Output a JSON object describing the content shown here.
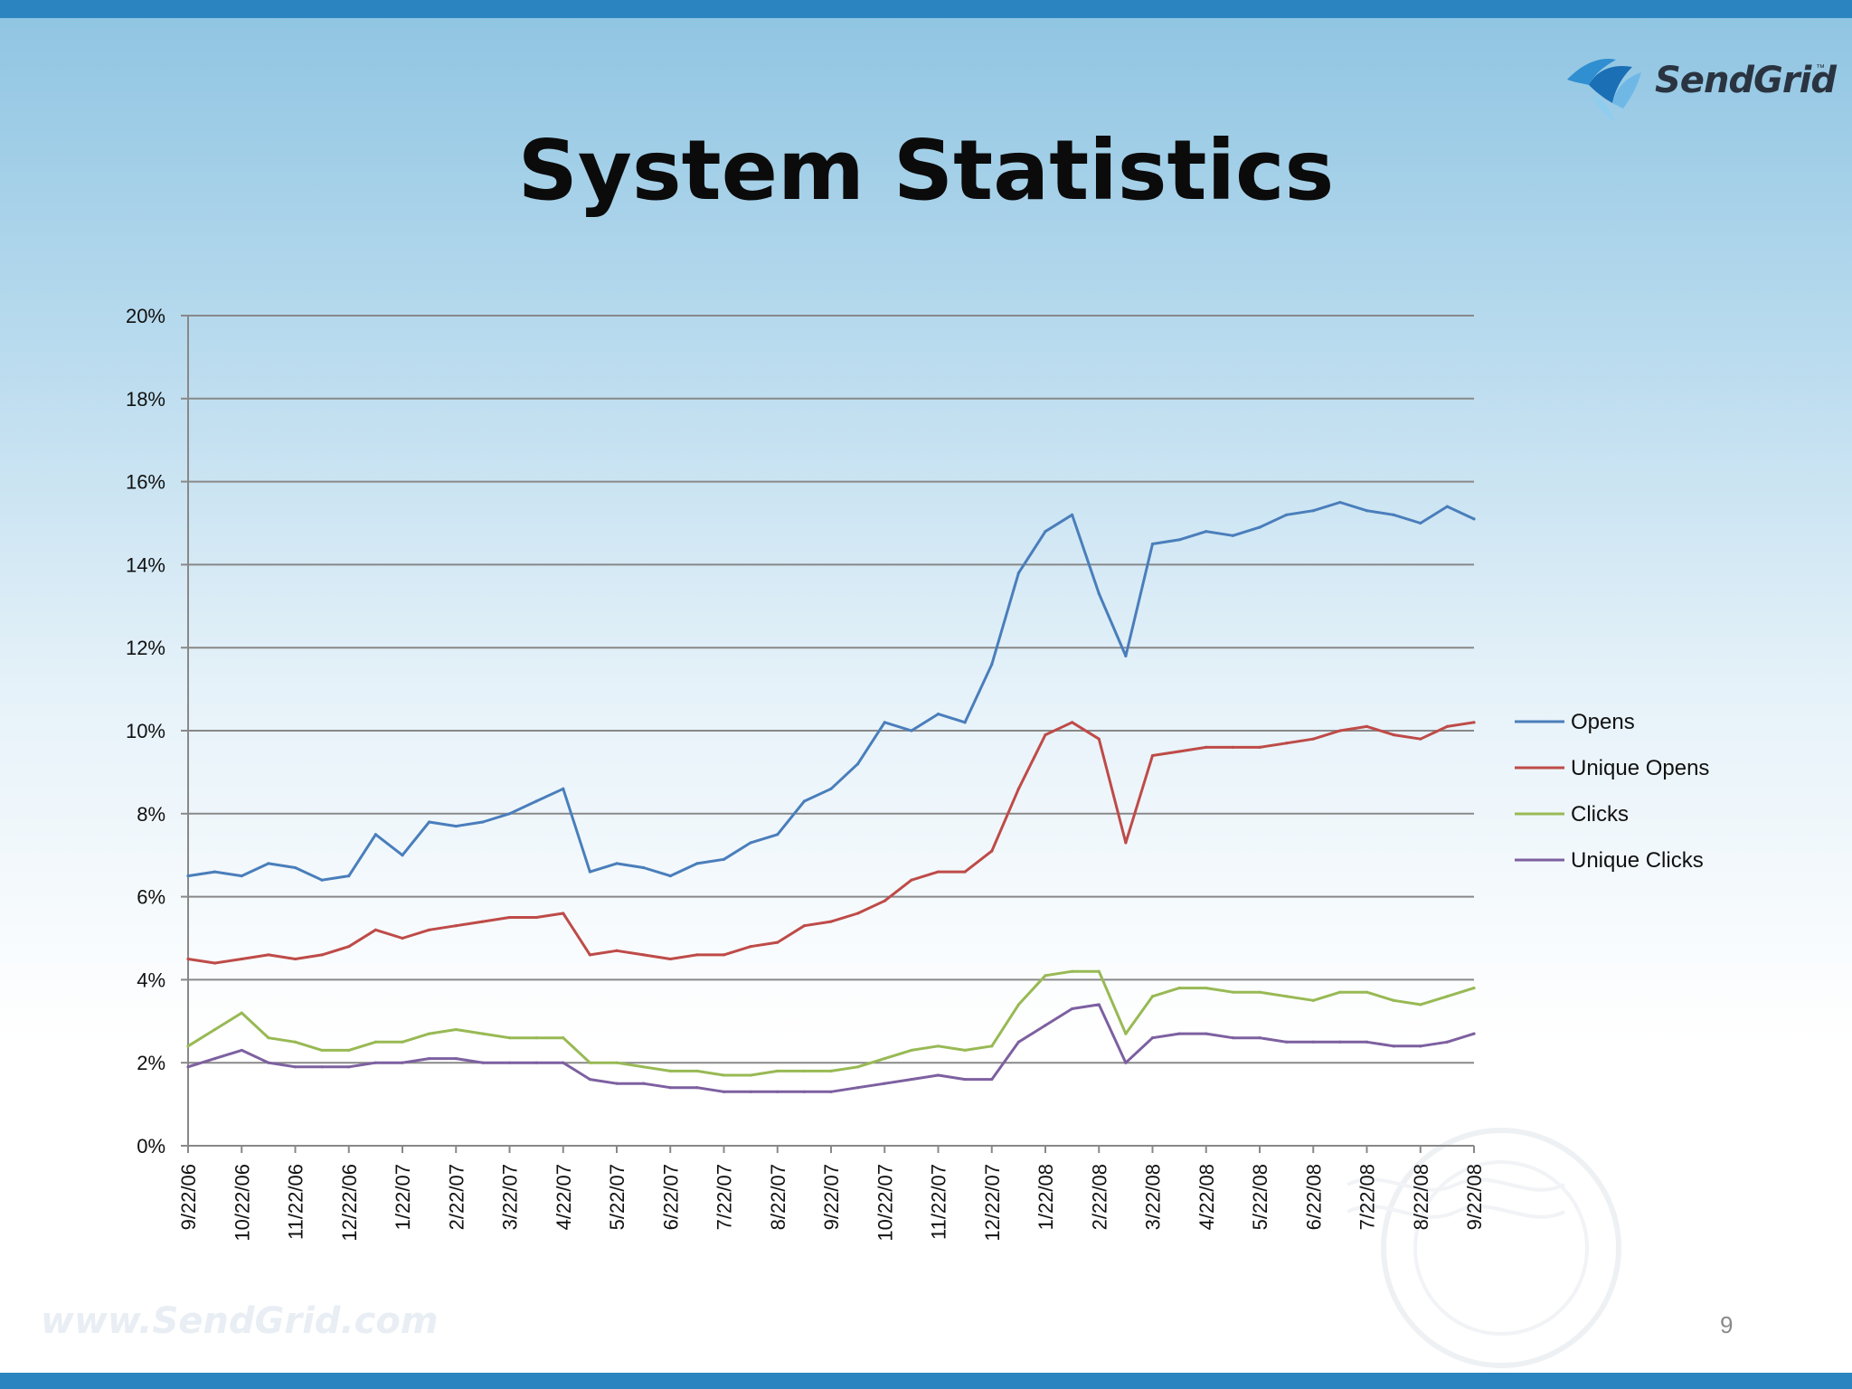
{
  "title": "System Statistics",
  "logo": {
    "text": "SendGrid",
    "tm": "™"
  },
  "watermark": "www.SendGrid.com",
  "page_number": "9",
  "chart_data": {
    "type": "line",
    "title": "",
    "xlabel": "",
    "ylabel": "",
    "ylim": [
      0,
      20
    ],
    "y_ticks": [
      "0%",
      "2%",
      "4%",
      "6%",
      "8%",
      "10%",
      "12%",
      "14%",
      "16%",
      "18%",
      "20%"
    ],
    "x_tick_labels": [
      "9/22/06",
      "10/22/06",
      "11/22/06",
      "12/22/06",
      "1/22/07",
      "2/22/07",
      "3/22/07",
      "4/22/07",
      "5/22/07",
      "6/22/07",
      "7/22/07",
      "8/22/07",
      "9/22/07",
      "10/22/07",
      "11/22/07",
      "12/22/07",
      "1/22/08",
      "2/22/08",
      "3/22/08",
      "4/22/08",
      "5/22/08",
      "6/22/08",
      "7/22/08",
      "8/22/08",
      "9/22/08"
    ],
    "x": [
      "9/22/06",
      "10/7/06",
      "10/22/06",
      "11/7/06",
      "11/22/06",
      "12/7/06",
      "12/22/06",
      "1/7/07",
      "1/22/07",
      "2/7/07",
      "2/22/07",
      "3/7/07",
      "3/22/07",
      "4/7/07",
      "4/22/07",
      "5/7/07",
      "5/22/07",
      "6/7/07",
      "6/22/07",
      "7/7/07",
      "7/22/07",
      "8/7/07",
      "8/22/07",
      "9/7/07",
      "9/22/07",
      "10/7/07",
      "10/22/07",
      "11/7/07",
      "11/22/07",
      "12/7/07",
      "12/22/07",
      "1/7/08",
      "1/22/08",
      "2/7/08",
      "2/22/08",
      "3/7/08",
      "3/22/08",
      "4/7/08",
      "4/22/08",
      "5/7/08",
      "5/22/08",
      "6/7/08",
      "6/22/08",
      "7/7/08",
      "7/22/08",
      "8/7/08",
      "8/22/08",
      "9/7/08",
      "9/22/08"
    ],
    "legend_position": "right",
    "grid": true,
    "series": [
      {
        "name": "Opens",
        "color": "#4a7ebb",
        "values": [
          6.5,
          6.6,
          6.5,
          6.8,
          6.7,
          6.4,
          6.5,
          7.5,
          7.0,
          7.8,
          7.7,
          7.8,
          8.0,
          8.3,
          8.6,
          6.6,
          6.8,
          6.7,
          6.5,
          6.8,
          6.9,
          7.3,
          7.5,
          8.3,
          8.6,
          9.2,
          10.2,
          10.0,
          10.4,
          10.2,
          11.6,
          13.8,
          14.8,
          15.2,
          13.3,
          11.8,
          14.5,
          14.6,
          14.8,
          14.7,
          14.9,
          15.2,
          15.3,
          15.5,
          15.3,
          15.2,
          15.0,
          15.4,
          15.1
        ]
      },
      {
        "name": "Unique Opens",
        "color": "#be4b48",
        "values": [
          4.5,
          4.4,
          4.5,
          4.6,
          4.5,
          4.6,
          4.8,
          5.2,
          5.0,
          5.2,
          5.3,
          5.4,
          5.5,
          5.5,
          5.6,
          4.6,
          4.7,
          4.6,
          4.5,
          4.6,
          4.6,
          4.8,
          4.9,
          5.3,
          5.4,
          5.6,
          5.9,
          6.4,
          6.6,
          6.6,
          7.1,
          8.6,
          9.9,
          10.2,
          9.8,
          7.3,
          9.4,
          9.5,
          9.6,
          9.6,
          9.6,
          9.7,
          9.8,
          10.0,
          10.1,
          9.9,
          9.8,
          10.1,
          10.2
        ]
      },
      {
        "name": "Clicks",
        "color": "#98b954",
        "values": [
          2.4,
          2.8,
          3.2,
          2.6,
          2.5,
          2.3,
          2.3,
          2.5,
          2.5,
          2.7,
          2.8,
          2.7,
          2.6,
          2.6,
          2.6,
          2.0,
          2.0,
          1.9,
          1.8,
          1.8,
          1.7,
          1.7,
          1.8,
          1.8,
          1.8,
          1.9,
          2.1,
          2.3,
          2.4,
          2.3,
          2.4,
          3.4,
          4.1,
          4.2,
          4.2,
          2.7,
          3.6,
          3.8,
          3.8,
          3.7,
          3.7,
          3.6,
          3.5,
          3.7,
          3.7,
          3.5,
          3.4,
          3.6,
          3.8
        ]
      },
      {
        "name": "Unique Clicks",
        "color": "#7d60a0",
        "values": [
          1.9,
          2.1,
          2.3,
          2.0,
          1.9,
          1.9,
          1.9,
          2.0,
          2.0,
          2.1,
          2.1,
          2.0,
          2.0,
          2.0,
          2.0,
          1.6,
          1.5,
          1.5,
          1.4,
          1.4,
          1.3,
          1.3,
          1.3,
          1.3,
          1.3,
          1.4,
          1.5,
          1.6,
          1.7,
          1.6,
          1.6,
          2.5,
          2.9,
          3.3,
          3.4,
          2.0,
          2.6,
          2.7,
          2.7,
          2.6,
          2.6,
          2.5,
          2.5,
          2.5,
          2.5,
          2.4,
          2.4,
          2.5,
          2.7
        ]
      }
    ]
  }
}
